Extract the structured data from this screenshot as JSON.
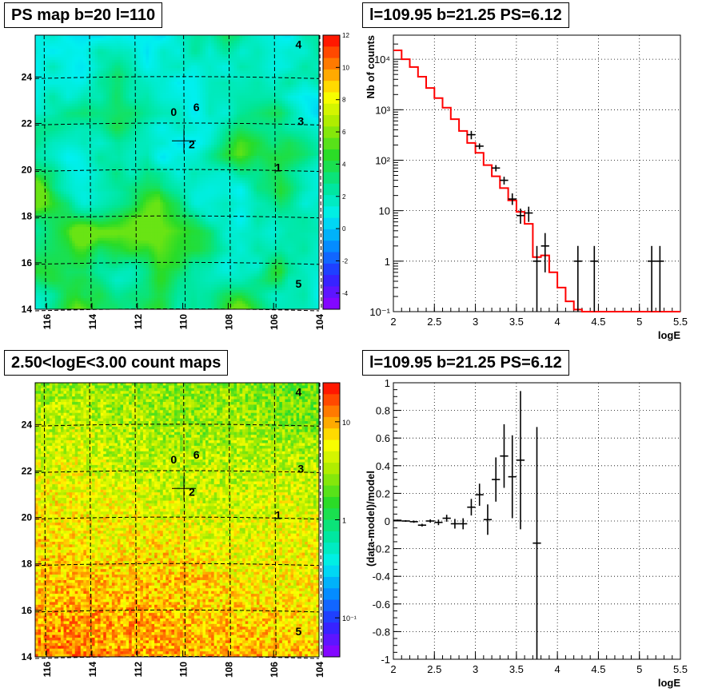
{
  "panels": {
    "ps_map": {
      "title": "PS map b=20 l=110"
    },
    "count_map": {
      "title": "2.50<logE<3.00 count maps"
    },
    "spectrum": {
      "title": "l=109.95 b=21.25 PS=6.12"
    },
    "residual": {
      "title": "l=109.95 b=21.25 PS=6.12"
    }
  },
  "chart_data": [
    {
      "name": "ps_map",
      "type": "heatmap",
      "title": "PS map b=20 l=110",
      "x_ticks": [
        "116",
        "114",
        "112",
        "110",
        "108",
        "106",
        "104"
      ],
      "y_ticks": [
        "14",
        "16",
        "18",
        "20",
        "22",
        "24"
      ],
      "xlim": [
        116.5,
        104
      ],
      "ylim": [
        14,
        25.8
      ],
      "colorbar": {
        "min": -5,
        "max": 12,
        "ticks": [
          "12",
          "10",
          "8",
          "6",
          "4",
          "2",
          "0",
          "-2",
          "-4"
        ]
      },
      "source_labels": [
        {
          "text": "0",
          "l": 110.4,
          "b": 22.5
        },
        {
          "text": "6",
          "l": 109.4,
          "b": 22.7
        },
        {
          "text": "2",
          "l": 109.6,
          "b": 21.1
        },
        {
          "text": "3",
          "l": 104.8,
          "b": 22.1
        },
        {
          "text": "1",
          "l": 105.8,
          "b": 20.1
        },
        {
          "text": "4",
          "l": 104.9,
          "b": 25.4
        },
        {
          "text": "5",
          "l": 104.9,
          "b": 15.1
        }
      ],
      "marker": {
        "l": 109.95,
        "b": 21.25
      }
    },
    {
      "name": "count_map",
      "type": "heatmap",
      "title": "2.50<logE<3.00 count maps",
      "x_ticks": [
        "116",
        "114",
        "112",
        "110",
        "108",
        "106",
        "104"
      ],
      "y_ticks": [
        "14",
        "16",
        "18",
        "20",
        "22",
        "24"
      ],
      "xlim": [
        116.5,
        104
      ],
      "ylim": [
        14,
        25.8
      ],
      "colorbar": {
        "scale": "log",
        "min": 0.04,
        "max": 25,
        "ticks": [
          "10",
          "1",
          "10⁻¹"
        ]
      },
      "source_labels": [
        {
          "text": "0",
          "l": 110.4,
          "b": 22.5
        },
        {
          "text": "6",
          "l": 109.4,
          "b": 22.7
        },
        {
          "text": "2",
          "l": 109.6,
          "b": 21.1
        },
        {
          "text": "3",
          "l": 104.8,
          "b": 22.1
        },
        {
          "text": "1",
          "l": 105.8,
          "b": 20.1
        },
        {
          "text": "4",
          "l": 104.9,
          "b": 25.4
        },
        {
          "text": "5",
          "l": 104.9,
          "b": 15.1
        }
      ],
      "marker": {
        "l": 109.95,
        "b": 21.25
      }
    },
    {
      "name": "spectrum",
      "type": "line",
      "title": "l=109.95 b=21.25 PS=6.12",
      "xlabel": "logE",
      "ylabel": "Nb of counts",
      "xlim": [
        2,
        5.5
      ],
      "ylim": [
        0.1,
        30000
      ],
      "yscale": "log",
      "x_ticks": [
        "2",
        "2.5",
        "3",
        "3.5",
        "4",
        "4.5",
        "5",
        "5.5"
      ],
      "y_ticks": [
        {
          "v": 0.1,
          "t": "10⁻¹"
        },
        {
          "v": 1,
          "t": "1"
        },
        {
          "v": 10,
          "t": "10"
        },
        {
          "v": 100,
          "t": "10²"
        },
        {
          "v": 1000,
          "t": "10³"
        },
        {
          "v": 10000,
          "t": "10⁴"
        }
      ],
      "grid": true,
      "bin_width": 0.1,
      "model": {
        "name": "model",
        "color": "#ff0000",
        "x": [
          2.0,
          2.1,
          2.2,
          2.3,
          2.4,
          2.5,
          2.6,
          2.7,
          2.8,
          2.9,
          3.0,
          3.1,
          3.2,
          3.3,
          3.4,
          3.5,
          3.6,
          3.7,
          3.8,
          3.9,
          4.0,
          4.1,
          4.2,
          4.3,
          4.4,
          4.5,
          4.6,
          4.7,
          4.8,
          4.9,
          5.0,
          5.1,
          5.2,
          5.3,
          5.4
        ],
        "values": [
          15000,
          10000,
          7000,
          4500,
          2700,
          1700,
          1100,
          650,
          380,
          220,
          140,
          80,
          48,
          28,
          16,
          9.5,
          5.5,
          1.2,
          1.3,
          0.6,
          0.3,
          0.16,
          0.11,
          0.1,
          0.1,
          0.1,
          0.1,
          0.1,
          0.1,
          0.1,
          0.1,
          0.1,
          0.1,
          0.1,
          0.1
        ]
      },
      "data": {
        "name": "data",
        "color": "#000000",
        "points": [
          {
            "x": 2.95,
            "y": 320,
            "lo": 260,
            "hi": 380
          },
          {
            "x": 3.05,
            "y": 190,
            "lo": 165,
            "hi": 215
          },
          {
            "x": 3.25,
            "y": 70,
            "lo": 60,
            "hi": 80
          },
          {
            "x": 3.35,
            "y": 40,
            "lo": 33,
            "hi": 47
          },
          {
            "x": 3.45,
            "y": 17,
            "lo": 13,
            "hi": 22
          },
          {
            "x": 3.55,
            "y": 8,
            "lo": 5.5,
            "hi": 11
          },
          {
            "x": 3.65,
            "y": 9,
            "lo": 6,
            "hi": 12
          },
          {
            "x": 3.75,
            "y": 1,
            "lo": 0.1,
            "hi": 2
          },
          {
            "x": 3.85,
            "y": 2,
            "lo": 0.6,
            "hi": 3.6
          },
          {
            "x": 4.25,
            "y": 1,
            "lo": 0.1,
            "hi": 2
          },
          {
            "x": 4.45,
            "y": 1,
            "lo": 0.1,
            "hi": 2
          },
          {
            "x": 5.15,
            "y": 1,
            "lo": 0.1,
            "hi": 2
          },
          {
            "x": 5.25,
            "y": 1,
            "lo": 0.1,
            "hi": 2
          }
        ]
      }
    },
    {
      "name": "residual",
      "type": "scatter",
      "title": "l=109.95 b=21.25 PS=6.12",
      "xlabel": "logE",
      "ylabel": "(data-model)/model",
      "xlim": [
        2,
        5.5
      ],
      "ylim": [
        -1,
        1
      ],
      "x_ticks": [
        "2",
        "2.5",
        "3",
        "3.5",
        "4",
        "4.5",
        "5",
        "5.5"
      ],
      "y_ticks": [
        "-1",
        "-0.8",
        "-0.6",
        "-0.4",
        "-0.2",
        "0",
        "0.2",
        "0.4",
        "0.6",
        "0.8",
        "1"
      ],
      "grid": true,
      "bin_width": 0.1,
      "points": [
        {
          "x": 2.05,
          "y": 0.005,
          "err": 0.005
        },
        {
          "x": 2.15,
          "y": 0.0,
          "err": 0.006
        },
        {
          "x": 2.25,
          "y": -0.005,
          "err": 0.008
        },
        {
          "x": 2.35,
          "y": -0.03,
          "err": 0.01
        },
        {
          "x": 2.45,
          "y": 0.0,
          "err": 0.012
        },
        {
          "x": 2.55,
          "y": -0.01,
          "err": 0.02
        },
        {
          "x": 2.65,
          "y": 0.02,
          "err": 0.025
        },
        {
          "x": 2.75,
          "y": -0.02,
          "err": 0.035
        },
        {
          "x": 2.85,
          "y": -0.02,
          "err": 0.04
        },
        {
          "x": 2.95,
          "y": 0.1,
          "err": 0.06
        },
        {
          "x": 3.05,
          "y": 0.19,
          "err": 0.08
        },
        {
          "x": 3.15,
          "y": 0.01,
          "err": 0.11
        },
        {
          "x": 3.25,
          "y": 0.3,
          "err": 0.16
        },
        {
          "x": 3.35,
          "y": 0.47,
          "err": 0.23
        },
        {
          "x": 3.45,
          "y": 0.32,
          "err": 0.3
        },
        {
          "x": 3.55,
          "y": 0.44,
          "err": 0.5
        },
        {
          "x": 3.75,
          "y": -0.16,
          "err": 0.84
        }
      ]
    }
  ]
}
